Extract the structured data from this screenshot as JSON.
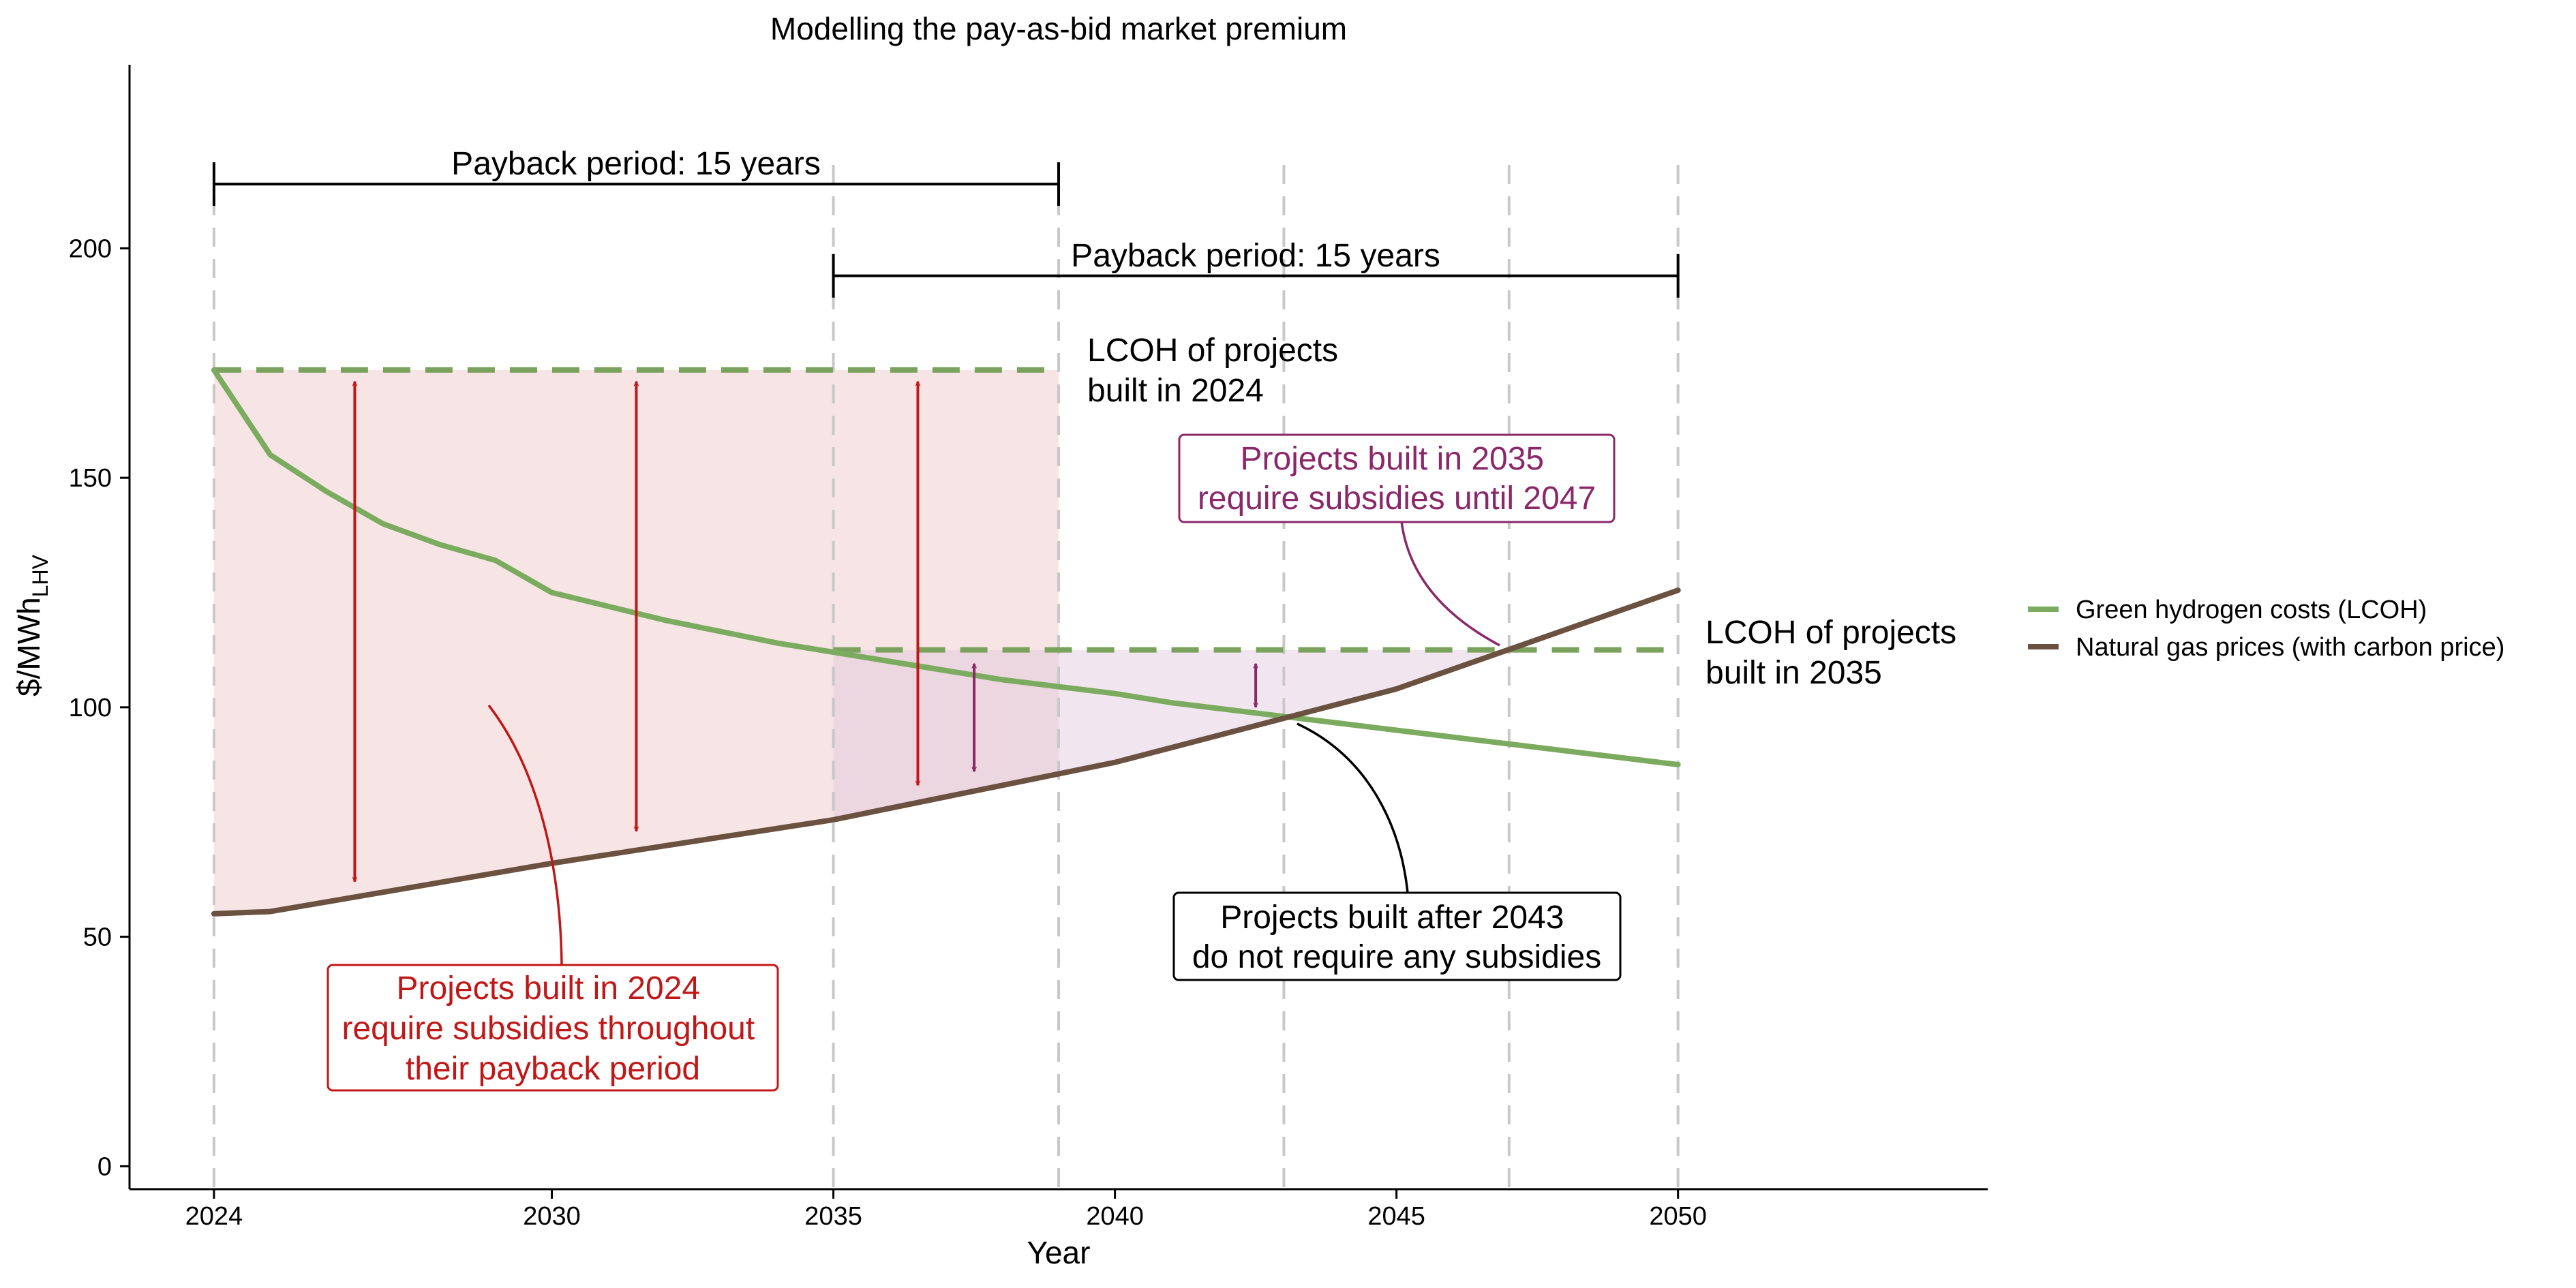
{
  "chart_data": {
    "type": "line",
    "title": "Modelling the pay-as-bid market premium",
    "xlabel": "Year",
    "ylabel": "$/MWh",
    "ylabel_subscript": "LHV",
    "xlim": [
      2022.5,
      2055.5
    ],
    "ylim": [
      -5,
      240
    ],
    "xticks": [
      2024,
      2030,
      2035,
      2040,
      2045,
      2050
    ],
    "yticks": [
      0,
      50,
      100,
      150,
      200
    ],
    "grid": false,
    "legend_position": "right",
    "series": [
      {
        "name": "Green hydrogen costs (LCOH)",
        "color": "#7bab5e",
        "x": [
          2024,
          2025,
          2026,
          2027,
          2028,
          2029,
          2030,
          2031,
          2032,
          2033,
          2034,
          2035,
          2036,
          2037,
          2038,
          2039,
          2040,
          2041,
          2042,
          2043,
          2044,
          2045,
          2046,
          2047,
          2048,
          2049,
          2050
        ],
        "values": [
          173.5,
          155,
          147,
          140,
          135.5,
          132,
          125,
          122,
          119,
          116.5,
          114,
          112,
          110,
          108,
          106,
          104.5,
          103,
          101,
          99.5,
          98,
          96.5,
          95,
          93.5,
          92,
          90.5,
          89,
          87.5
        ]
      },
      {
        "name": "Natural gas prices (with carbon price)",
        "color": "#6b5140",
        "x": [
          2024,
          2025,
          2030,
          2035,
          2040,
          2045,
          2050
        ],
        "values": [
          55,
          55.5,
          66,
          75.5,
          88,
          104,
          125.5
        ]
      }
    ],
    "reference_lines": [
      {
        "label": "LCOH of projects built in 2024",
        "value": 173.5,
        "x_start": 2024,
        "x_end": 2039,
        "style": "dashed",
        "color": "#7ba25c"
      },
      {
        "label": "LCOH of projects built in 2035",
        "value": 112.5,
        "x_start": 2035,
        "x_end": 2050,
        "style": "dashed",
        "color": "#7ba25c"
      }
    ],
    "shaded_areas": [
      {
        "name": "subsidy-2024",
        "x_start": 2024,
        "x_end": 2039,
        "top": 173.5,
        "bottom_series": "Natural gas prices (with carbon price)",
        "color": "#e9b5b8",
        "opacity": 0.35
      },
      {
        "name": "subsidy-2035",
        "x_start": 2035,
        "x_end": 2047,
        "top": 112.5,
        "bottom_series": "Natural gas prices (with carbon price)",
        "color": "#d9bcd8",
        "opacity": 0.38
      }
    ],
    "vertical_dashed_lines": [
      2024,
      2035,
      2039,
      2043,
      2047,
      2050
    ],
    "payback_brackets": [
      {
        "label": "Payback period: 15 years",
        "x_start": 2024,
        "x_end": 2039,
        "y": 214
      },
      {
        "label": "Payback period: 15 years",
        "x_start": 2035,
        "x_end": 2050,
        "y": 194
      }
    ],
    "subsidy_arrows": [
      {
        "x": 2026.5,
        "y_top": 171,
        "y_bottom": 62,
        "color": "#c01818"
      },
      {
        "x": 2031.5,
        "y_top": 171,
        "y_bottom": 73,
        "color": "#c01818"
      },
      {
        "x": 2036.5,
        "y_top": 171,
        "y_bottom": 83,
        "color": "#c01818"
      },
      {
        "x": 2037.5,
        "y_top": 109.5,
        "y_bottom": 86,
        "color": "#8a286a"
      },
      {
        "x": 2042.5,
        "y_top": 109.5,
        "y_bottom": 100,
        "color": "#8a286a"
      }
    ],
    "annotations": [
      {
        "id": "lcoh-2024",
        "lines": [
          "LCOH of projects",
          "built in 2024"
        ],
        "color": "#000000",
        "boxed": false
      },
      {
        "id": "lcoh-2035",
        "lines": [
          "LCOH of projects",
          "built in 2035"
        ],
        "color": "#000000",
        "boxed": false
      },
      {
        "id": "projects-2035",
        "lines": [
          "Projects built in 2035",
          "require subsidies until 2047"
        ],
        "color": "#8a286a",
        "boxed": true
      },
      {
        "id": "projects-2043",
        "lines": [
          "Projects built after 2043",
          "do not require any subsidies"
        ],
        "color": "#000000",
        "boxed": true
      },
      {
        "id": "projects-2024",
        "lines": [
          "Projects built in 2024",
          "require subsidies throughout",
          "their payback period"
        ],
        "color": "#c01818",
        "boxed": true
      }
    ]
  }
}
